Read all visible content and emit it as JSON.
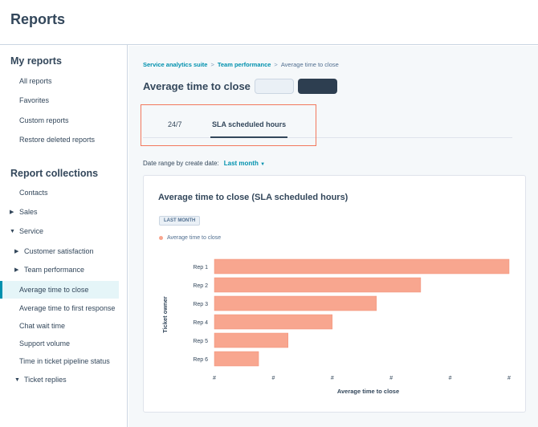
{
  "header": {
    "title": "Reports"
  },
  "sidebar": {
    "my_reports_heading": "My reports",
    "my_reports": [
      "All reports",
      "Favorites",
      "Custom reports",
      "Restore deleted reports"
    ],
    "collections_heading": "Report collections",
    "collections": [
      {
        "label": "Contacts",
        "caret": "",
        "indent": 0
      },
      {
        "label": "Sales",
        "caret": "▶",
        "indent": 0
      },
      {
        "label": "Service",
        "caret": "▼",
        "indent": 0
      },
      {
        "label": "Customer satisfaction",
        "caret": "▶",
        "indent": 1
      },
      {
        "label": "Team performance",
        "caret": "▶",
        "indent": 1
      },
      {
        "label": "Average time to close",
        "caret": "",
        "indent": 0,
        "active": true
      },
      {
        "label": "Average time to first response",
        "caret": "",
        "indent": 0
      },
      {
        "label": "Chat wait time",
        "caret": "",
        "indent": 0
      },
      {
        "label": "Support volume",
        "caret": "",
        "indent": 0
      },
      {
        "label": "Time in ticket pipeline status",
        "caret": "",
        "indent": 0
      },
      {
        "label": "Ticket replies",
        "caret": "▼",
        "indent": 1
      }
    ]
  },
  "breadcrumb": {
    "items": [
      "Service analytics suite",
      "Team performance"
    ],
    "current": "Average time to close"
  },
  "report": {
    "title": "Average time to close",
    "tabs": [
      "24/7",
      "SLA scheduled hours"
    ],
    "active_tab": 1,
    "date_range_label": "Date range by create date:",
    "date_range_value": "Last month",
    "card_title": "Average time to close (SLA scheduled hours)",
    "badge": "LAST MONTH"
  },
  "colors": {
    "accent": "#0091ae",
    "bar": "#f8a68f",
    "highlight": "#f2785d"
  },
  "chart_data": {
    "type": "bar",
    "orientation": "horizontal",
    "categories": [
      "Rep 1",
      "Rep 2",
      "Rep 3",
      "Rep 4",
      "Rep 5",
      "Rep 6"
    ],
    "values": [
      100,
      70,
      55,
      40,
      25,
      15
    ],
    "series": [
      {
        "name": "Average time to close",
        "values": [
          100,
          70,
          55,
          40,
          25,
          15
        ]
      }
    ],
    "xlabel": "Average time to close",
    "ylabel": "Ticket owner",
    "xticks": [
      "#",
      "#",
      "#",
      "#",
      "#",
      "#"
    ],
    "xlim": [
      0,
      100
    ]
  }
}
